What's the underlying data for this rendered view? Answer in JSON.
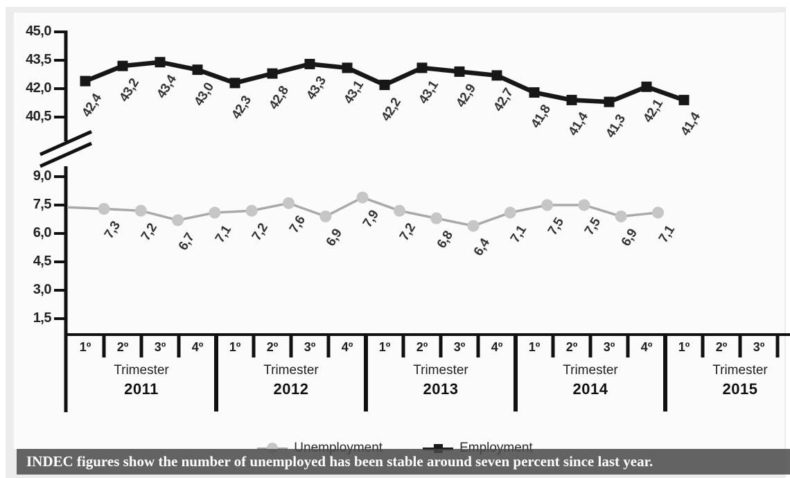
{
  "caption": {
    "text": "INDEC figures show the number of unemployed has been stable around seven percent since last year."
  },
  "legend": {
    "items": [
      {
        "label": "Unemployment",
        "marker": "gray-circle"
      },
      {
        "label": "Employment",
        "marker": "black-square"
      }
    ]
  },
  "chart_data": {
    "type": "line",
    "broken_y_axis": true,
    "y_axis": {
      "upper_tick_labels": [
        "45,0",
        "43,5",
        "42,0",
        "40,5"
      ],
      "lower_tick_labels": [
        "9,0",
        "7,5",
        "6,0",
        "4,5",
        "3,0",
        "1,5"
      ],
      "upper_range": [
        40.5,
        45.0
      ],
      "lower_range": [
        1.5,
        9.0
      ]
    },
    "x_axis": {
      "groups": [
        {
          "year": "2011",
          "group_label": "Trimester",
          "quarters": [
            "1º",
            "2º",
            "3º",
            "4º"
          ]
        },
        {
          "year": "2012",
          "group_label": "Trimester",
          "quarters": [
            "1º",
            "2º",
            "3º",
            "4º"
          ]
        },
        {
          "year": "2013",
          "group_label": "Trimester",
          "quarters": [
            "1º",
            "2º",
            "3º",
            "4º"
          ]
        },
        {
          "year": "2014",
          "group_label": "Trimester",
          "quarters": [
            "1º",
            "2º",
            "3º",
            "4º"
          ]
        },
        {
          "year": "2015",
          "group_label": "Trimester",
          "quarters": [
            "1º",
            "2º",
            "3º"
          ]
        }
      ]
    },
    "series": [
      {
        "name": "Employment",
        "marker": "square",
        "line_color": "#171717",
        "marker_color": "#171717",
        "scale": "upper",
        "labels": [
          "42,4",
          "43,2",
          "43,4",
          "43,0",
          "42,3",
          "42,8",
          "43,3",
          "43,1",
          "42,2",
          "43,1",
          "42,9",
          "42,7",
          "41,8",
          "41,4",
          "41,3",
          "42,1",
          "41,4"
        ],
        "values": [
          42.4,
          43.2,
          43.4,
          43.0,
          42.3,
          42.8,
          43.3,
          43.1,
          42.2,
          43.1,
          42.9,
          42.7,
          41.8,
          41.4,
          41.3,
          42.1,
          41.4
        ]
      },
      {
        "name": "Unemployment",
        "marker": "circle",
        "line_color": "#a9a9a9",
        "marker_color": "#c6c6c6",
        "scale": "lower",
        "axis_lead_in": true,
        "labels": [
          "7,3",
          "7,2",
          "6,7",
          "7,1",
          "7,2",
          "7,6",
          "6,9",
          "7,9",
          "7,2",
          "6,8",
          "6,4",
          "7,1",
          "7,5",
          "7,5",
          "6,9",
          "7,1"
        ],
        "values": [
          7.3,
          7.2,
          6.7,
          7.1,
          7.2,
          7.6,
          6.9,
          7.9,
          7.2,
          6.8,
          6.4,
          7.1,
          7.5,
          7.5,
          6.9,
          7.1
        ]
      }
    ]
  }
}
